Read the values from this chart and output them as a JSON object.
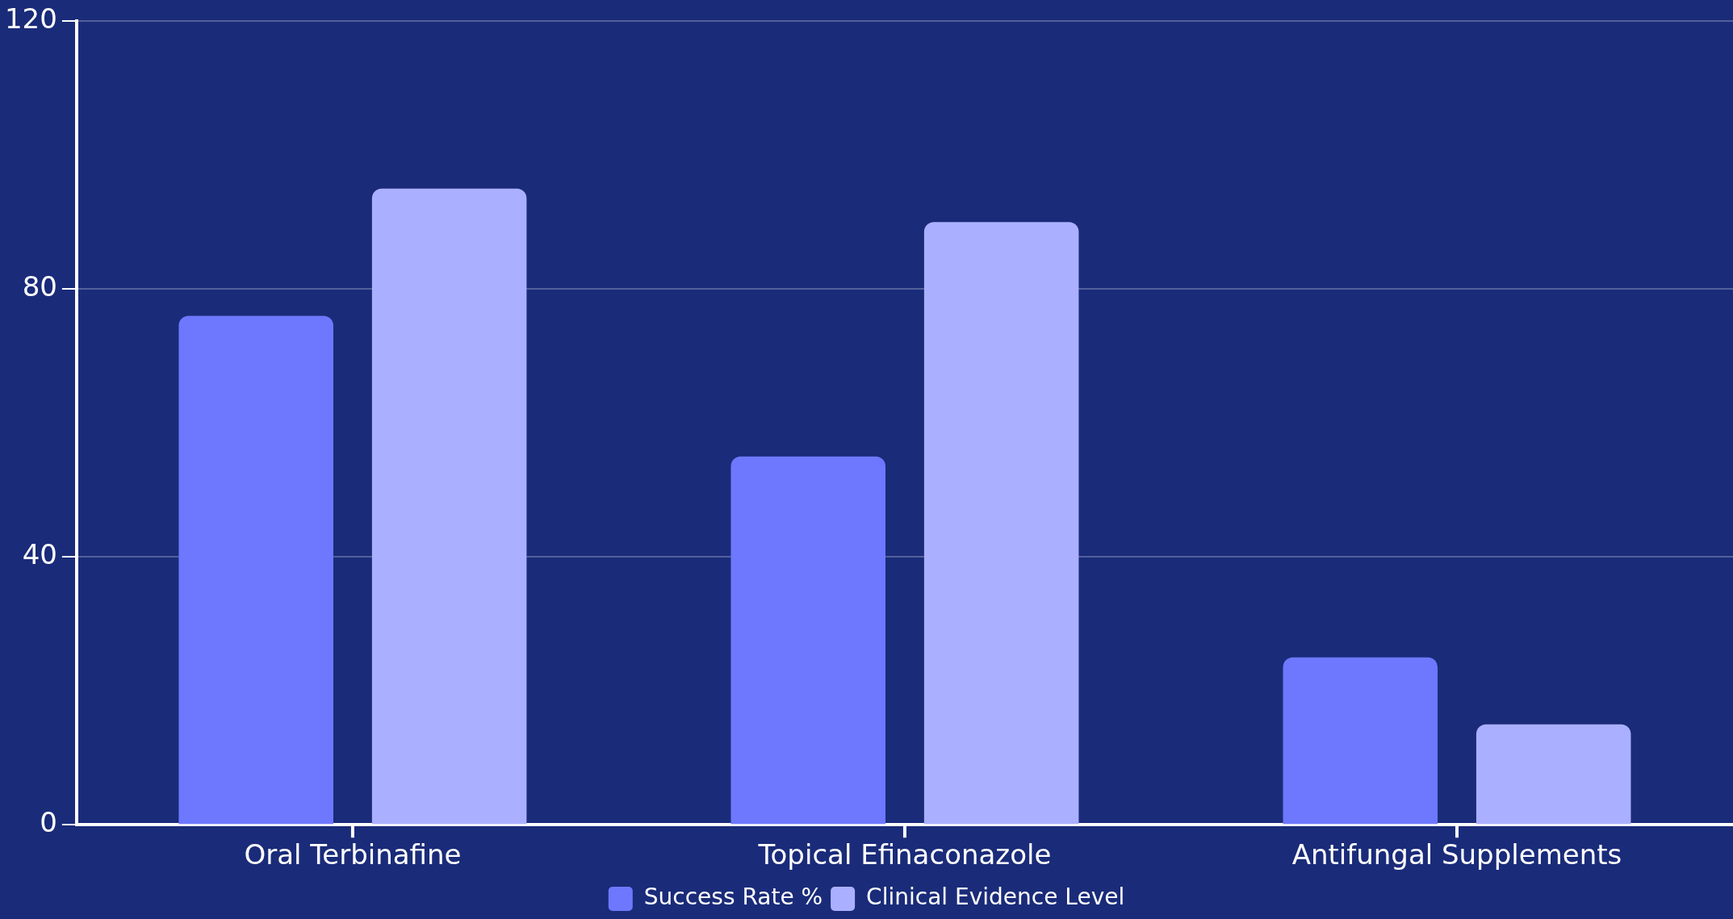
{
  "chart_data": {
    "type": "bar",
    "categories": [
      "Oral Terbinafine",
      "Topical Efinaconazole",
      "Antifungal Supplements"
    ],
    "series": [
      {
        "name": "Success Rate %",
        "color": "#6e78ff",
        "values": [
          76,
          55,
          25
        ]
      },
      {
        "name": "Clinical Evidence Level",
        "color": "#aab0ff",
        "values": [
          95,
          90,
          15
        ]
      }
    ],
    "ylim": [
      0,
      120
    ],
    "yticks": [
      0,
      40,
      80,
      120
    ],
    "grid": "y",
    "legend": "bottom"
  }
}
